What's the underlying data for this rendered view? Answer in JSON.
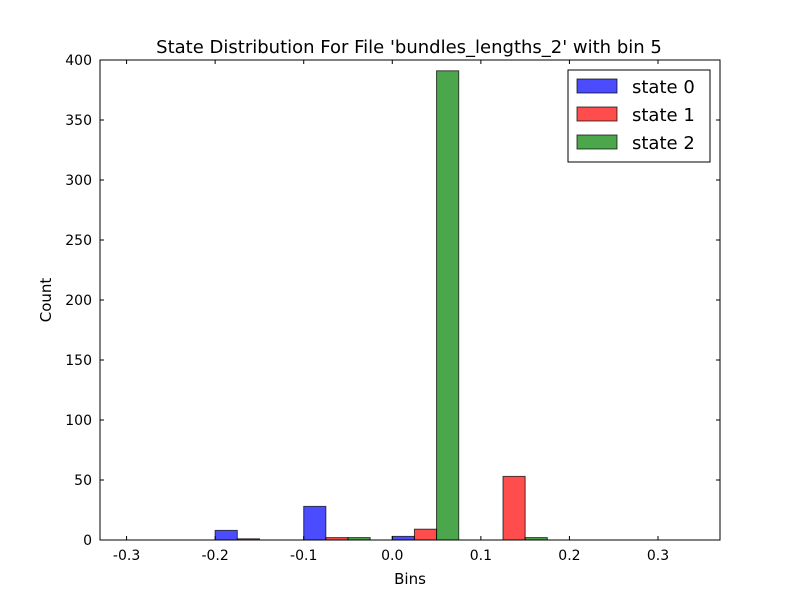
{
  "chart_data": {
    "type": "bar",
    "title": "State Distribution For File 'bundles_lengths_2' with bin 5",
    "xlabel": "Bins",
    "ylabel": "Count",
    "xlim": [
      -0.33,
      0.37
    ],
    "ylim": [
      0,
      400
    ],
    "xticks": [
      -0.3,
      -0.2,
      -0.1,
      0.0,
      0.1,
      0.2,
      0.3
    ],
    "xtick_labels": [
      "-0.3",
      "-0.2",
      "-0.1",
      "0.0",
      "0.1",
      "0.2",
      "0.3"
    ],
    "yticks": [
      0,
      50,
      100,
      150,
      200,
      250,
      300,
      350,
      400
    ],
    "ytick_labels": [
      "0",
      "50",
      "100",
      "150",
      "200",
      "250",
      "300",
      "350",
      "400"
    ],
    "bar_width": 0.025,
    "grid": false,
    "legend_position": "top-right",
    "series": [
      {
        "name": "state 0",
        "color": "#0000ff",
        "points": [
          {
            "x": -0.3,
            "y": 0
          },
          {
            "x": -0.2,
            "y": 8
          },
          {
            "x": -0.1,
            "y": 28
          },
          {
            "x": 0.0,
            "y": 3
          },
          {
            "x": 0.1,
            "y": 0
          },
          {
            "x": 0.2,
            "y": 0
          },
          {
            "x": 0.3,
            "y": 0
          }
        ]
      },
      {
        "name": "state 1",
        "color": "#ff0000",
        "points": [
          {
            "x": -0.275,
            "y": 0
          },
          {
            "x": -0.175,
            "y": 1
          },
          {
            "x": -0.075,
            "y": 2
          },
          {
            "x": 0.025,
            "y": 9
          },
          {
            "x": 0.125,
            "y": 53
          },
          {
            "x": 0.225,
            "y": 0
          },
          {
            "x": 0.325,
            "y": 0
          }
        ]
      },
      {
        "name": "state 2",
        "color": "#008000",
        "points": [
          {
            "x": -0.25,
            "y": 0
          },
          {
            "x": -0.15,
            "y": 0
          },
          {
            "x": -0.05,
            "y": 2
          },
          {
            "x": 0.05,
            "y": 391
          },
          {
            "x": 0.15,
            "y": 2
          },
          {
            "x": 0.25,
            "y": 0
          },
          {
            "x": 0.35,
            "y": 0
          }
        ]
      }
    ]
  }
}
